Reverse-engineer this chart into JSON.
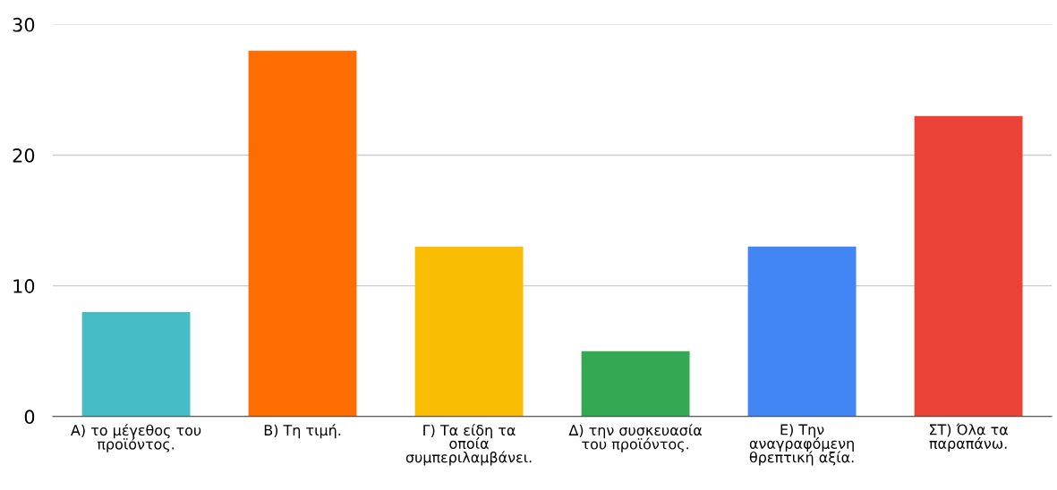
{
  "chart_data": {
    "type": "bar",
    "categories": [
      "Α) το μέγεθος του προϊόντος.",
      "Β) Τη τιμή.",
      "Γ) Τα είδη τα οποία συμπεριλαμβάνει.",
      "Δ) την συσκευασία του προϊόντος.",
      "Ε) Την αναγραφόμενη θρεπτική αξία.",
      "ΣΤ) Όλα τα παραπάνω."
    ],
    "values": [
      8,
      28,
      13,
      5,
      13,
      23
    ],
    "colors": [
      "#46bdc6",
      "#ff6d01",
      "#fbbc04",
      "#34a853",
      "#4285f4",
      "#ea4335"
    ],
    "ylim": [
      0,
      30
    ],
    "yticks": [
      0,
      10,
      20,
      30
    ],
    "grid": "y",
    "legend": false
  }
}
